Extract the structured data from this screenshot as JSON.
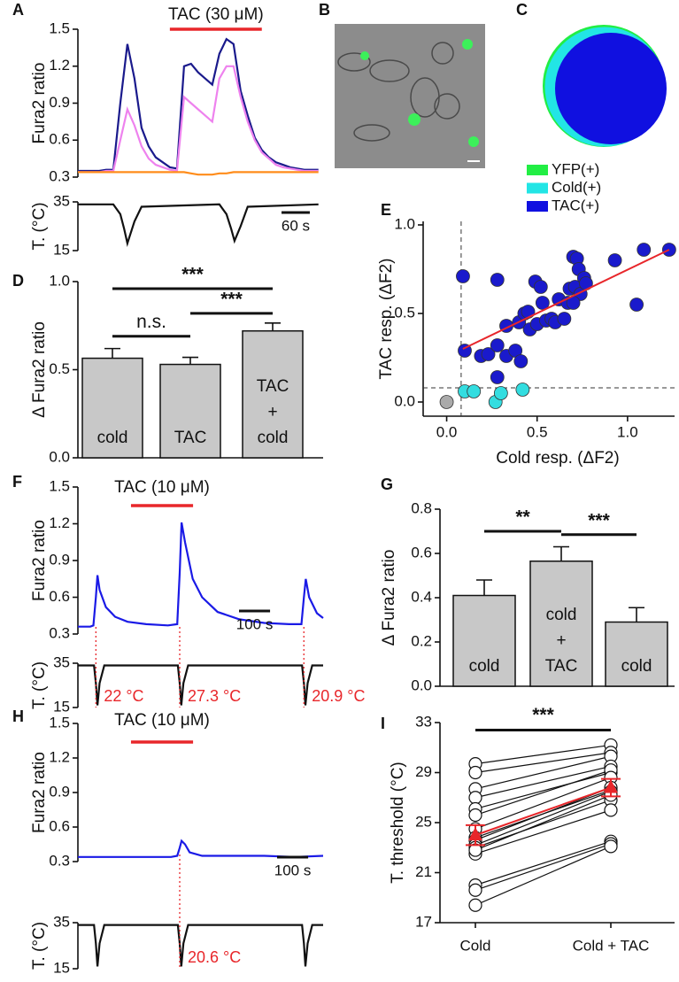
{
  "chart_data": [
    {
      "type": "trace",
      "panel": "A",
      "ylabel": "Fura2 ratio",
      "ylim": [
        0.3,
        1.5
      ],
      "yticks": [
        0.3,
        0.6,
        0.9,
        1.2,
        1.5
      ],
      "xlim": [
        0,
        520
      ],
      "x": [
        0,
        15,
        30,
        45,
        60,
        75,
        90,
        105,
        120,
        135,
        150,
        165,
        180,
        195,
        210,
        225,
        240,
        255,
        270,
        285,
        300,
        315,
        330,
        345,
        360,
        375,
        390,
        405,
        420,
        435,
        450,
        465,
        480,
        495,
        510
      ],
      "series": [
        {
          "color": "#1a1a8c",
          "values": [
            0.35,
            0.35,
            0.35,
            0.35,
            0.36,
            0.36,
            0.9,
            1.38,
            1.1,
            0.7,
            0.55,
            0.46,
            0.42,
            0.38,
            0.37,
            1.2,
            1.22,
            1.15,
            1.1,
            1.05,
            1.3,
            1.42,
            1.38,
            1.0,
            0.8,
            0.62,
            0.52,
            0.46,
            0.42,
            0.4,
            0.38,
            0.37,
            0.36,
            0.36,
            0.36
          ]
        },
        {
          "color": "#ee82ee",
          "values": [
            0.34,
            0.34,
            0.34,
            0.34,
            0.35,
            0.35,
            0.6,
            0.85,
            0.72,
            0.55,
            0.45,
            0.4,
            0.38,
            0.36,
            0.35,
            0.95,
            0.9,
            0.85,
            0.8,
            0.75,
            1.1,
            1.2,
            1.2,
            0.95,
            0.75,
            0.6,
            0.5,
            0.45,
            0.4,
            0.38,
            0.37,
            0.36,
            0.35,
            0.35,
            0.35
          ]
        },
        {
          "color": "#ff8c1a",
          "values": [
            0.34,
            0.34,
            0.34,
            0.34,
            0.34,
            0.34,
            0.34,
            0.34,
            0.34,
            0.34,
            0.34,
            0.34,
            0.34,
            0.34,
            0.34,
            0.34,
            0.33,
            0.32,
            0.32,
            0.32,
            0.33,
            0.33,
            0.34,
            0.34,
            0.34,
            0.34,
            0.34,
            0.34,
            0.34,
            0.34,
            0.34,
            0.34,
            0.34,
            0.34,
            0.34
          ]
        }
      ],
      "stimulus": {
        "label": "TAC (30 μM)",
        "x": [
          195,
          390
        ],
        "color": "#e8262a"
      },
      "scalebar": {
        "label": "60 s",
        "length": 60
      },
      "temperature": {
        "ylabel": "T. (°C)",
        "ylim": [
          15,
          35
        ],
        "yticks": [
          15,
          35
        ],
        "color": "#111111",
        "x": [
          0,
          75,
          90,
          98,
          105,
          120,
          135,
          300,
          315,
          325,
          332,
          345,
          360,
          510
        ],
        "values": [
          34,
          34,
          30,
          24,
          18,
          27,
          33,
          34,
          30,
          24,
          19,
          25,
          33,
          34
        ]
      }
    },
    {
      "type": "image",
      "panel": "B"
    },
    {
      "type": "venn",
      "panel": "C",
      "legend": [
        {
          "name": "YFP(+)",
          "color": "#22ee44"
        },
        {
          "name": "Cold(+)",
          "color": "#22e5e5"
        },
        {
          "name": "TAC(+)",
          "color": "#1010e0"
        }
      ]
    },
    {
      "type": "bar",
      "panel": "D",
      "ylabel": "Δ Fura2 ratio",
      "ylim": [
        0,
        1.0
      ],
      "yticks": [
        {
          "value": 0,
          "label": "0.0"
        },
        0.5,
        {
          "value": 1,
          "label": "1.0"
        }
      ],
      "categories": [
        "cold",
        "TAC",
        "TAC\n+\ncold"
      ],
      "values": [
        0.565,
        0.53,
        0.72
      ],
      "errors": [
        0.055,
        0.04,
        0.045
      ],
      "color": "#c8c8c8",
      "significance": [
        {
          "label": "***",
          "from": 0,
          "to": 2,
          "y": 0.96
        },
        {
          "label": "n.s.",
          "from": 0,
          "to": 1,
          "y": 0.69
        },
        {
          "label": "***",
          "from": 1,
          "to": 2,
          "y": 0.82
        }
      ]
    },
    {
      "type": "scatter",
      "panel": "E",
      "xlabel": "Cold resp. (ΔF2)",
      "ylabel": "TAC resp. (ΔF2)",
      "xlim": [
        -0.13,
        1.26
      ],
      "ylim": [
        -0.08,
        1.02
      ],
      "xticks": [
        {
          "value": 0,
          "label": "0.0"
        },
        0.5,
        {
          "value": 1,
          "label": "1.0"
        }
      ],
      "yticks": [
        {
          "value": 0,
          "label": "0.0"
        },
        0.5,
        {
          "value": 1,
          "label": "1.0"
        }
      ],
      "series": [
        {
          "color": "#1a1acc",
          "x": [
            0.09,
            0.1,
            0.19,
            0.23,
            0.28,
            0.28,
            0.28,
            0.33,
            0.33,
            0.38,
            0.4,
            0.41,
            0.43,
            0.45,
            0.46,
            0.49,
            0.5,
            0.53,
            0.55,
            0.58,
            0.6,
            0.62,
            0.65,
            0.67,
            0.68,
            0.7,
            0.71,
            0.72,
            0.73,
            0.74,
            0.76,
            0.77,
            0.93,
            1.05,
            1.09,
            1.23,
            0.7,
            0.52
          ],
          "values": [
            0.71,
            0.29,
            0.26,
            0.27,
            0.32,
            0.14,
            0.69,
            0.43,
            0.26,
            0.29,
            0.45,
            0.23,
            0.5,
            0.51,
            0.41,
            0.68,
            0.44,
            0.56,
            0.46,
            0.47,
            0.45,
            0.58,
            0.47,
            0.56,
            0.64,
            0.82,
            0.65,
            0.81,
            0.75,
            0.61,
            0.7,
            0.67,
            0.8,
            0.55,
            0.86,
            0.86,
            0.56,
            0.65
          ]
        },
        {
          "color": "#33dde0",
          "x": [
            0.1,
            0.15,
            0.27,
            0.3,
            0.42
          ],
          "values": [
            0.06,
            0.06,
            0.0,
            0.05,
            0.07
          ]
        },
        {
          "color": "#aaaaaa",
          "x": [
            0.0
          ],
          "values": [
            0.0
          ]
        }
      ],
      "refline": {
        "x": 0.08,
        "y": 0.08
      },
      "fit": {
        "color": "#e8262a",
        "x": [
          0.09,
          1.23
        ],
        "values": [
          0.3,
          0.86
        ]
      }
    },
    {
      "type": "trace",
      "panel": "F",
      "ylabel": "Fura2 ratio",
      "ylim": [
        0.3,
        1.5
      ],
      "yticks": [
        0.3,
        0.6,
        0.9,
        1.2,
        1.5
      ],
      "xlim": [
        0,
        790
      ],
      "x": [
        0,
        40,
        50,
        58,
        63,
        70,
        90,
        120,
        160,
        220,
        290,
        320,
        328,
        334,
        345,
        370,
        400,
        450,
        520,
        600,
        680,
        720,
        728,
        734,
        745,
        770,
        790
      ],
      "series": [
        {
          "color": "#1a1ae6",
          "values": [
            0.36,
            0.36,
            0.37,
            0.6,
            0.78,
            0.66,
            0.52,
            0.44,
            0.4,
            0.38,
            0.37,
            0.38,
            0.8,
            1.21,
            1.05,
            0.75,
            0.6,
            0.48,
            0.42,
            0.39,
            0.38,
            0.38,
            0.6,
            0.75,
            0.6,
            0.47,
            0.43
          ]
        }
      ],
      "stimulus": {
        "label": "TAC (10 μM)",
        "x": [
          171,
          371
        ],
        "color": "#e8262a"
      },
      "scalebar": {
        "label": "100 s",
        "length": 100
      },
      "thresholds": [
        {
          "x": 58,
          "label": "22 °C"
        },
        {
          "x": 328,
          "label": "27.3 °C"
        },
        {
          "x": 728,
          "label": "20.9 °C"
        }
      ],
      "temperature": {
        "ylabel": "T. (°C)",
        "ylim": [
          15,
          35
        ],
        "yticks": [
          15,
          35
        ],
        "color": "#111111",
        "x": [
          0,
          52,
          58,
          63,
          70,
          85,
          322,
          328,
          333,
          340,
          355,
          722,
          728,
          733,
          740,
          755,
          790
        ],
        "values": [
          34,
          34,
          26,
          16,
          26,
          34,
          34,
          26,
          16,
          26,
          34,
          34,
          26,
          16,
          26,
          34,
          34
        ]
      }
    },
    {
      "type": "bar",
      "panel": "G",
      "ylabel": "Δ Fura2 ratio",
      "ylim": [
        0,
        0.8
      ],
      "yticks": [
        {
          "value": 0,
          "label": "0.0"
        },
        0.2,
        0.4,
        0.6,
        0.8
      ],
      "categories": [
        "cold",
        "cold\n+\nTAC",
        "cold"
      ],
      "values": [
        0.41,
        0.565,
        0.29
      ],
      "errors": [
        0.07,
        0.065,
        0.065
      ],
      "color": "#c8c8c8",
      "significance": [
        {
          "label": "**",
          "from": 0,
          "to": 1,
          "y": 0.7
        },
        {
          "label": "***",
          "from": 1,
          "to": 2,
          "y": 0.685
        }
      ]
    },
    {
      "type": "trace",
      "panel": "H",
      "ylabel": "Fura2 ratio",
      "ylim": [
        0.3,
        1.5
      ],
      "yticks": [
        0.3,
        0.6,
        0.9,
        1.2,
        1.5
      ],
      "xlim": [
        0,
        790
      ],
      "x": [
        0,
        300,
        320,
        328,
        334,
        345,
        360,
        400,
        500,
        600,
        700,
        790
      ],
      "series": [
        {
          "color": "#1a1ae6",
          "values": [
            0.34,
            0.34,
            0.35,
            0.42,
            0.48,
            0.45,
            0.38,
            0.35,
            0.35,
            0.35,
            0.34,
            0.35
          ]
        }
      ],
      "stimulus": {
        "label": "TAC (10 μM)",
        "x": [
          171,
          371
        ],
        "color": "#e8262a"
      },
      "scalebar": {
        "label": "100 s",
        "length": 100
      },
      "thresholds": [
        {
          "x": 328,
          "label": "20.6 °C"
        }
      ],
      "temperature": {
        "ylabel": "T. (°C)",
        "ylim": [
          15,
          35
        ],
        "yticks": [
          15,
          35
        ],
        "color": "#111111",
        "x": [
          0,
          52,
          58,
          63,
          70,
          85,
          322,
          328,
          333,
          340,
          355,
          722,
          728,
          733,
          740,
          755,
          790
        ],
        "values": [
          34,
          34,
          26,
          16,
          26,
          34,
          34,
          26,
          16,
          26,
          34,
          34,
          26,
          16,
          26,
          34,
          34
        ]
      }
    },
    {
      "type": "paired",
      "panel": "I",
      "ylabel": "T. threshold (°C)",
      "ylim": [
        17,
        33
      ],
      "yticks": [
        17,
        21,
        25,
        29,
        33
      ],
      "categories": [
        "Cold",
        "Cold + TAC"
      ],
      "before": [
        29.7,
        29,
        27.7,
        27,
        26.1,
        25.6,
        24.5,
        23.8,
        23.6,
        23.2,
        23,
        22.5,
        20,
        19.6,
        18.4,
        22.8
      ],
      "after": [
        31.2,
        30.6,
        30.3,
        29.5,
        29,
        29.2,
        28.6,
        27.6,
        27.8,
        27.5,
        26.8,
        26,
        23.5,
        23.3,
        23.1,
        27.2
      ],
      "means": [
        24.0,
        27.8
      ],
      "errors": [
        0.8,
        0.7
      ],
      "mean_color": "#e8262a",
      "significance": {
        "label": "***",
        "y": 32.4
      }
    }
  ]
}
